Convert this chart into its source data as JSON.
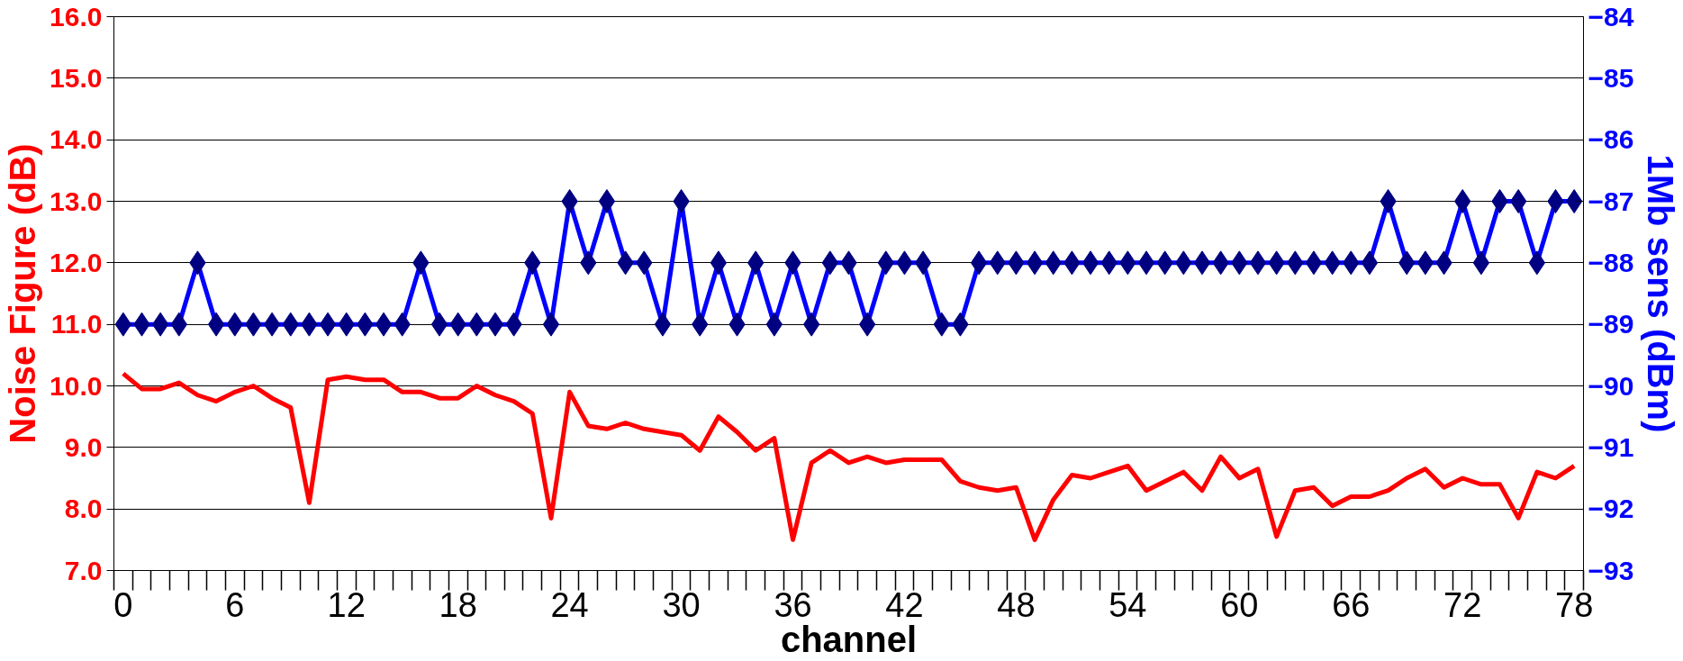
{
  "chart_data": {
    "type": "line",
    "xlabel": "channel",
    "ylabel": "Noise Figure (dB)",
    "y2label": "1Mb sens (dBm)",
    "x": [
      0,
      1,
      2,
      3,
      4,
      5,
      6,
      7,
      8,
      9,
      10,
      11,
      12,
      13,
      14,
      15,
      16,
      17,
      18,
      19,
      20,
      21,
      22,
      23,
      24,
      25,
      26,
      27,
      28,
      29,
      30,
      31,
      32,
      33,
      34,
      35,
      36,
      37,
      38,
      39,
      40,
      41,
      42,
      43,
      44,
      45,
      46,
      47,
      48,
      49,
      50,
      51,
      52,
      53,
      54,
      55,
      56,
      57,
      58,
      59,
      60,
      61,
      62,
      63,
      64,
      65,
      66,
      67,
      68,
      69,
      70,
      71,
      72,
      73,
      74,
      75,
      76,
      77,
      78
    ],
    "series": [
      {
        "color": "#ff0000",
        "marker": "none",
        "values": [
          10.2,
          9.95,
          9.95,
          10.05,
          9.85,
          9.75,
          9.9,
          10.0,
          9.8,
          9.65,
          8.1,
          10.1,
          10.15,
          10.1,
          10.1,
          9.9,
          9.9,
          9.8,
          9.8,
          10.0,
          9.85,
          9.75,
          9.55,
          7.85,
          9.9,
          9.35,
          9.3,
          9.4,
          9.3,
          9.25,
          9.2,
          8.95,
          9.5,
          9.25,
          8.95,
          9.15,
          7.5,
          8.75,
          8.95,
          8.75,
          8.85,
          8.75,
          8.8,
          8.8,
          8.8,
          8.45,
          8.35,
          8.3,
          8.35,
          7.5,
          8.15,
          8.55,
          8.5,
          8.6,
          8.7,
          8.3,
          8.45,
          8.6,
          8.3,
          8.85,
          8.5,
          8.65,
          7.55,
          8.3,
          8.35,
          8.05,
          8.2,
          8.2,
          8.3,
          8.5,
          8.65,
          8.35,
          8.5,
          8.4,
          8.4,
          7.85,
          8.6,
          8.5,
          8.7
        ]
      },
      {
        "color": "#0000ff",
        "marker": "diamond",
        "axis": "y2",
        "colors": [
          "#000080",
          "#000080",
          "#000080",
          "#000080",
          "#000080",
          "#000080",
          "#000080",
          "#000080",
          "#000080",
          "#000080",
          "#000080",
          "#000080",
          "#000080",
          "#000080",
          "#000080",
          "#000080",
          "#000080",
          "#000080",
          "#000080",
          "#000080",
          "#000080",
          "#000080",
          "#000080",
          "#000080",
          "#000080",
          "#000080",
          "#000080",
          "#000080",
          "#000080",
          "#000080",
          "#000080",
          "#000080",
          "#000080",
          "#000080",
          "#000080",
          "#000080",
          "#000080",
          "#000080",
          "#000080",
          "#000080",
          "#000080",
          "#000080",
          "#000080",
          "#000080",
          "#000080",
          "#000080",
          "#000080",
          "#000080",
          "#000080",
          "#000080",
          "#000080",
          "#000080",
          "#000080",
          "#000080",
          "#000080",
          "#000080",
          "#000080",
          "#000080",
          "#000080",
          "#000080",
          "#000080",
          "#000080",
          "#000080",
          "#000080",
          "#000080",
          "#000080",
          "#000080",
          "#000080",
          "#000080",
          "#000080",
          "#000080",
          "#000080",
          "#000080",
          "#000080",
          "#000080",
          "#000080",
          "#000080",
          "#000080",
          "#000080"
        ],
        "values": [
          -89,
          -89,
          -89,
          -89,
          -88,
          -89,
          -89,
          -89,
          -89,
          -89,
          -89,
          -89,
          -89,
          -89,
          -89,
          -89,
          -88,
          -89,
          -89,
          -89,
          -89,
          -89,
          -88,
          -89,
          -87,
          -88,
          -87,
          -88,
          -88,
          -89,
          -87,
          -89,
          -88,
          -89,
          -88,
          -89,
          -88,
          -89,
          -88,
          -88,
          -89,
          -88,
          -88,
          -88,
          -89,
          -89,
          -88,
          -88,
          -88,
          -88,
          -88,
          -88,
          -88,
          -88,
          -88,
          -88,
          -88,
          -88,
          -88,
          -88,
          -88,
          -88,
          -88,
          -88,
          -88,
          -88,
          -88,
          -88,
          -87,
          -88,
          -88,
          -88,
          -87,
          -88,
          -87,
          -87,
          -88,
          -87,
          -87
        ]
      }
    ],
    "xlim": [
      -0.5,
      78.5
    ],
    "xticks": [
      0,
      6,
      12,
      18,
      24,
      30,
      36,
      42,
      48,
      54,
      60,
      66,
      72,
      78
    ],
    "ylim": [
      7,
      16
    ],
    "yticks": [
      {
        "value": 7,
        "label": "7.0"
      },
      {
        "value": 8,
        "label": "8.0"
      },
      {
        "value": 9,
        "label": "9.0"
      },
      {
        "value": 10,
        "label": "10.0"
      },
      {
        "value": 11,
        "label": "11.0"
      },
      {
        "value": 12,
        "label": "12.0"
      },
      {
        "value": 13,
        "label": "13.0"
      },
      {
        "value": 14,
        "label": "14.0"
      },
      {
        "value": 15,
        "label": "15.0"
      },
      {
        "value": 16,
        "label": "16.0"
      }
    ],
    "y2lim": [
      -93,
      -84
    ],
    "y2ticks": [
      -93,
      -92,
      -91,
      -90,
      -89,
      -88,
      -87,
      -86,
      -85,
      -84
    ],
    "grid": "y"
  }
}
